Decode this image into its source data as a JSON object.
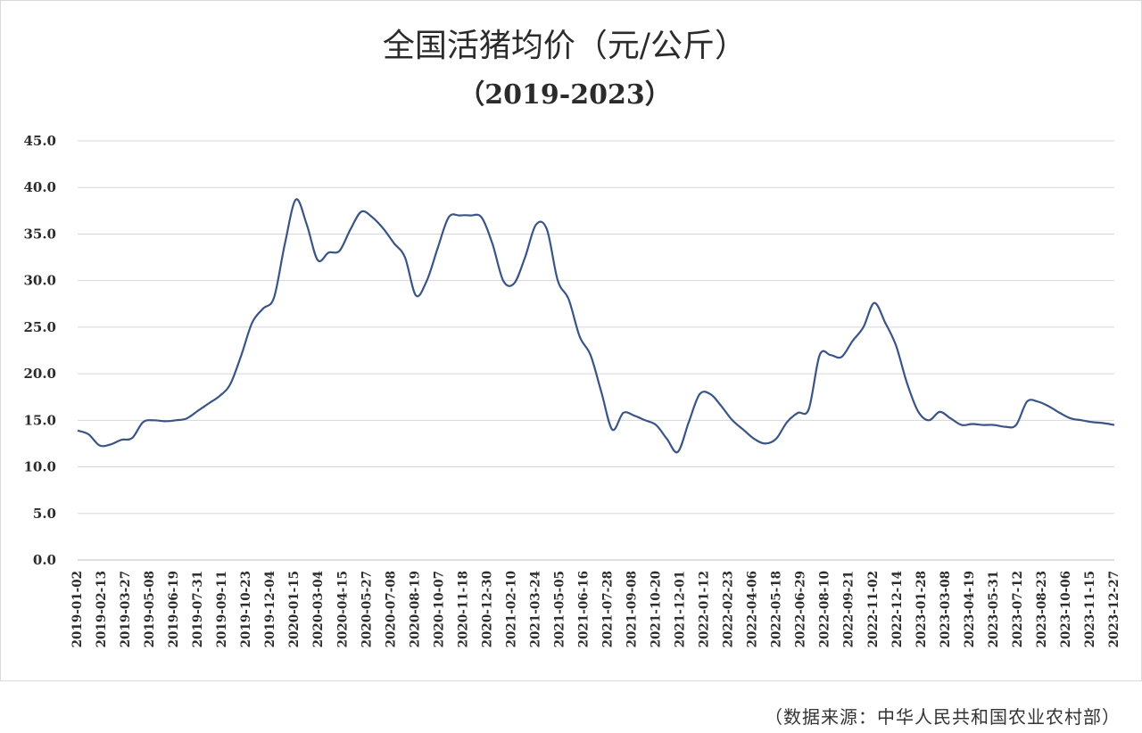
{
  "chart_data": {
    "type": "line",
    "title": "全国活猪均价（元/公斤）",
    "subtitle": "（2019-2023）",
    "xlabel": "",
    "ylabel": "",
    "ylim": [
      0,
      45
    ],
    "yticks": [
      "0.0",
      "5.0",
      "10.0",
      "15.0",
      "20.0",
      "25.0",
      "30.0",
      "35.0",
      "40.0",
      "45.0"
    ],
    "grid": true,
    "legend": "none",
    "line_color": "#3a5585",
    "x_tick_labels": [
      "2019-01-02",
      "2019-02-13",
      "2019-03-27",
      "2019-05-08",
      "2019-06-19",
      "2019-07-31",
      "2019-09-11",
      "2019-10-23",
      "2019-12-04",
      "2020-01-15",
      "2020-03-04",
      "2020-04-15",
      "2020-05-27",
      "2020-07-08",
      "2020-08-19",
      "2020-10-07",
      "2020-11-18",
      "2020-12-30",
      "2021-02-10",
      "2021-03-24",
      "2021-05-05",
      "2021-06-16",
      "2021-07-28",
      "2021-09-08",
      "2021-10-20",
      "2021-12-01",
      "2022-01-12",
      "2022-02-23",
      "2022-04-06",
      "2022-05-18",
      "2022-06-29",
      "2022-08-10",
      "2022-09-21",
      "2022-11-02",
      "2022-12-14",
      "2023-01-28",
      "2023-03-08",
      "2023-04-19",
      "2023-05-31",
      "2023-07-12",
      "2023-08-23",
      "2023-10-06",
      "2023-11-15",
      "2023-12-27"
    ],
    "series": [
      {
        "values": [
          13.9,
          13.5,
          12.3,
          12.4,
          12.9,
          13.1,
          14.8,
          15.0,
          14.9,
          15.0,
          15.2,
          16.0,
          16.8,
          17.6,
          18.9,
          22.0,
          25.5,
          27.0,
          28.2,
          34.0,
          38.7,
          36.0,
          32.2,
          33.0,
          33.2,
          35.5,
          37.4,
          36.8,
          35.6,
          34.0,
          32.5,
          28.4,
          30.0,
          33.5,
          36.8,
          37.0,
          37.0,
          36.8,
          34.0,
          30.0,
          29.7,
          32.5,
          36.0,
          35.5,
          30.0,
          28.0,
          24.0,
          22.0,
          18.0,
          14.0,
          15.8,
          15.5,
          15.0,
          14.5,
          13.0,
          11.6,
          14.8,
          17.8,
          17.8,
          16.5,
          15.0,
          14.0,
          13.0,
          12.5,
          13.0,
          14.8,
          15.8,
          16.2,
          22.0,
          22.0,
          21.8,
          23.5,
          25.0,
          27.6,
          25.5,
          23.0,
          19.0,
          16.0,
          15.0,
          15.9,
          15.2,
          14.5,
          14.6,
          14.5,
          14.5,
          14.3,
          14.5,
          17.0,
          17.0,
          16.5,
          15.8,
          15.2,
          15.0,
          14.8,
          14.7,
          14.5
        ]
      }
    ]
  },
  "source_note": "（数据来源：中华人民共和国农业农村部）"
}
